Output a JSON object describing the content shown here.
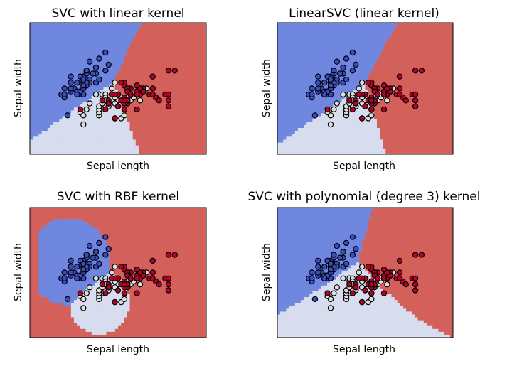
{
  "colors": {
    "class_0": "#3b4cc0",
    "class_1": "#dddddd",
    "class_2": "#b40426",
    "region_0": "#6f87df",
    "region_1": "#d7ddee",
    "region_2": "#d4605b"
  },
  "chart_data": [
    {
      "type": "scatter",
      "title": "SVC with linear kernel",
      "xlabel": "Sepal length",
      "ylabel": "Sepal width",
      "xticks": [],
      "yticks": [],
      "xlim": [
        3.3,
        8.9
      ],
      "ylim": [
        1.0,
        5.4
      ],
      "decision_regions": "linear",
      "series_ref": "iris"
    },
    {
      "type": "scatter",
      "title": "LinearSVC (linear kernel)",
      "xlabel": "Sepal length",
      "ylabel": "Sepal width",
      "xticks": [],
      "yticks": [],
      "xlim": [
        3.3,
        8.9
      ],
      "ylim": [
        1.0,
        5.4
      ],
      "decision_regions": "linear_ovr",
      "series_ref": "iris"
    },
    {
      "type": "scatter",
      "title": "SVC with RBF kernel",
      "xlabel": "Sepal length",
      "ylabel": "Sepal width",
      "xticks": [],
      "yticks": [],
      "xlim": [
        3.3,
        8.9
      ],
      "ylim": [
        1.0,
        5.4
      ],
      "decision_regions": "rbf",
      "series_ref": "iris"
    },
    {
      "type": "scatter",
      "title": "SVC with polynomial (degree 3) kernel",
      "xlabel": "Sepal length",
      "ylabel": "Sepal width",
      "xticks": [],
      "yticks": [],
      "xlim": [
        3.3,
        8.9
      ],
      "ylim": [
        1.0,
        5.4
      ],
      "decision_regions": "polynomial_degree_3",
      "series_ref": "iris"
    }
  ],
  "iris": [
    {
      "class": 0,
      "points": [
        [
          5.1,
          3.5
        ],
        [
          4.9,
          3.0
        ],
        [
          4.7,
          3.2
        ],
        [
          4.6,
          3.1
        ],
        [
          5.0,
          3.6
        ],
        [
          5.4,
          3.9
        ],
        [
          4.6,
          3.4
        ],
        [
          5.0,
          3.4
        ],
        [
          4.4,
          2.9
        ],
        [
          4.9,
          3.1
        ],
        [
          5.4,
          3.7
        ],
        [
          4.8,
          3.4
        ],
        [
          4.8,
          3.0
        ],
        [
          4.3,
          3.0
        ],
        [
          5.8,
          4.0
        ],
        [
          5.7,
          4.4
        ],
        [
          5.4,
          3.9
        ],
        [
          5.1,
          3.5
        ],
        [
          5.7,
          3.8
        ],
        [
          5.1,
          3.8
        ],
        [
          5.4,
          3.4
        ],
        [
          5.1,
          3.7
        ],
        [
          4.6,
          3.6
        ],
        [
          5.1,
          3.3
        ],
        [
          4.8,
          3.4
        ],
        [
          5.0,
          3.0
        ],
        [
          5.0,
          3.4
        ],
        [
          5.2,
          3.5
        ],
        [
          5.2,
          3.4
        ],
        [
          4.7,
          3.2
        ],
        [
          4.8,
          3.1
        ],
        [
          5.4,
          3.4
        ],
        [
          5.2,
          4.1
        ],
        [
          5.5,
          4.2
        ],
        [
          4.9,
          3.1
        ],
        [
          5.0,
          3.2
        ],
        [
          5.5,
          3.5
        ],
        [
          4.9,
          3.6
        ],
        [
          4.4,
          3.0
        ],
        [
          5.1,
          3.4
        ],
        [
          5.0,
          3.5
        ],
        [
          4.5,
          2.3
        ],
        [
          4.4,
          3.2
        ],
        [
          5.0,
          3.5
        ],
        [
          5.1,
          3.8
        ],
        [
          4.8,
          3.0
        ],
        [
          5.1,
          3.8
        ],
        [
          4.6,
          3.2
        ],
        [
          5.3,
          3.7
        ],
        [
          5.0,
          3.3
        ]
      ]
    },
    {
      "class": 1,
      "points": [
        [
          7.0,
          3.2
        ],
        [
          6.4,
          3.2
        ],
        [
          6.9,
          3.1
        ],
        [
          5.5,
          2.3
        ],
        [
          6.5,
          2.8
        ],
        [
          5.7,
          2.8
        ],
        [
          6.3,
          3.3
        ],
        [
          4.9,
          2.4
        ],
        [
          6.6,
          2.9
        ],
        [
          5.2,
          2.7
        ],
        [
          5.0,
          2.0
        ],
        [
          5.9,
          3.0
        ],
        [
          6.0,
          2.2
        ],
        [
          6.1,
          2.9
        ],
        [
          5.6,
          2.9
        ],
        [
          6.7,
          3.1
        ],
        [
          5.6,
          3.0
        ],
        [
          5.8,
          2.7
        ],
        [
          6.2,
          2.2
        ],
        [
          5.6,
          2.5
        ],
        [
          5.9,
          3.2
        ],
        [
          6.1,
          2.8
        ],
        [
          6.3,
          2.5
        ],
        [
          6.1,
          2.8
        ],
        [
          6.4,
          2.9
        ],
        [
          6.6,
          3.0
        ],
        [
          6.8,
          2.8
        ],
        [
          6.7,
          3.0
        ],
        [
          6.0,
          2.9
        ],
        [
          5.7,
          2.6
        ],
        [
          5.5,
          2.4
        ],
        [
          5.5,
          2.4
        ],
        [
          5.8,
          2.7
        ],
        [
          6.0,
          2.7
        ],
        [
          5.4,
          3.0
        ],
        [
          6.0,
          3.4
        ],
        [
          6.7,
          3.1
        ],
        [
          6.3,
          2.3
        ],
        [
          5.6,
          3.0
        ],
        [
          5.5,
          2.5
        ],
        [
          5.5,
          2.6
        ],
        [
          6.1,
          3.0
        ],
        [
          5.8,
          2.6
        ],
        [
          5.0,
          2.3
        ],
        [
          5.6,
          2.7
        ],
        [
          5.7,
          3.0
        ],
        [
          5.7,
          2.9
        ],
        [
          6.2,
          2.9
        ],
        [
          5.1,
          2.5
        ],
        [
          5.7,
          2.8
        ]
      ]
    },
    {
      "class": 2,
      "points": [
        [
          6.3,
          3.3
        ],
        [
          5.8,
          2.7
        ],
        [
          7.1,
          3.0
        ],
        [
          6.3,
          2.9
        ],
        [
          6.5,
          3.0
        ],
        [
          7.6,
          3.0
        ],
        [
          4.9,
          2.5
        ],
        [
          7.3,
          2.9
        ],
        [
          6.7,
          2.5
        ],
        [
          7.2,
          3.6
        ],
        [
          6.5,
          3.2
        ],
        [
          6.4,
          2.7
        ],
        [
          6.8,
          3.0
        ],
        [
          5.7,
          2.5
        ],
        [
          5.8,
          2.8
        ],
        [
          6.4,
          3.2
        ],
        [
          6.5,
          3.0
        ],
        [
          7.7,
          3.8
        ],
        [
          7.7,
          2.6
        ],
        [
          6.0,
          2.2
        ],
        [
          6.9,
          3.2
        ],
        [
          5.6,
          2.8
        ],
        [
          7.7,
          2.8
        ],
        [
          6.3,
          2.7
        ],
        [
          6.7,
          3.3
        ],
        [
          7.2,
          3.2
        ],
        [
          6.2,
          2.8
        ],
        [
          6.1,
          3.0
        ],
        [
          6.4,
          2.8
        ],
        [
          7.2,
          3.0
        ],
        [
          7.4,
          2.8
        ],
        [
          7.9,
          3.8
        ],
        [
          6.4,
          2.8
        ],
        [
          6.3,
          2.8
        ],
        [
          6.1,
          2.6
        ],
        [
          7.7,
          3.0
        ],
        [
          6.3,
          3.4
        ],
        [
          6.4,
          3.1
        ],
        [
          6.0,
          3.0
        ],
        [
          6.9,
          3.1
        ],
        [
          6.7,
          3.1
        ],
        [
          6.9,
          3.1
        ],
        [
          5.8,
          2.7
        ],
        [
          6.8,
          3.2
        ],
        [
          6.7,
          3.3
        ],
        [
          6.7,
          3.0
        ],
        [
          6.3,
          2.5
        ],
        [
          6.5,
          3.0
        ],
        [
          6.2,
          3.4
        ],
        [
          5.9,
          3.0
        ]
      ]
    }
  ]
}
